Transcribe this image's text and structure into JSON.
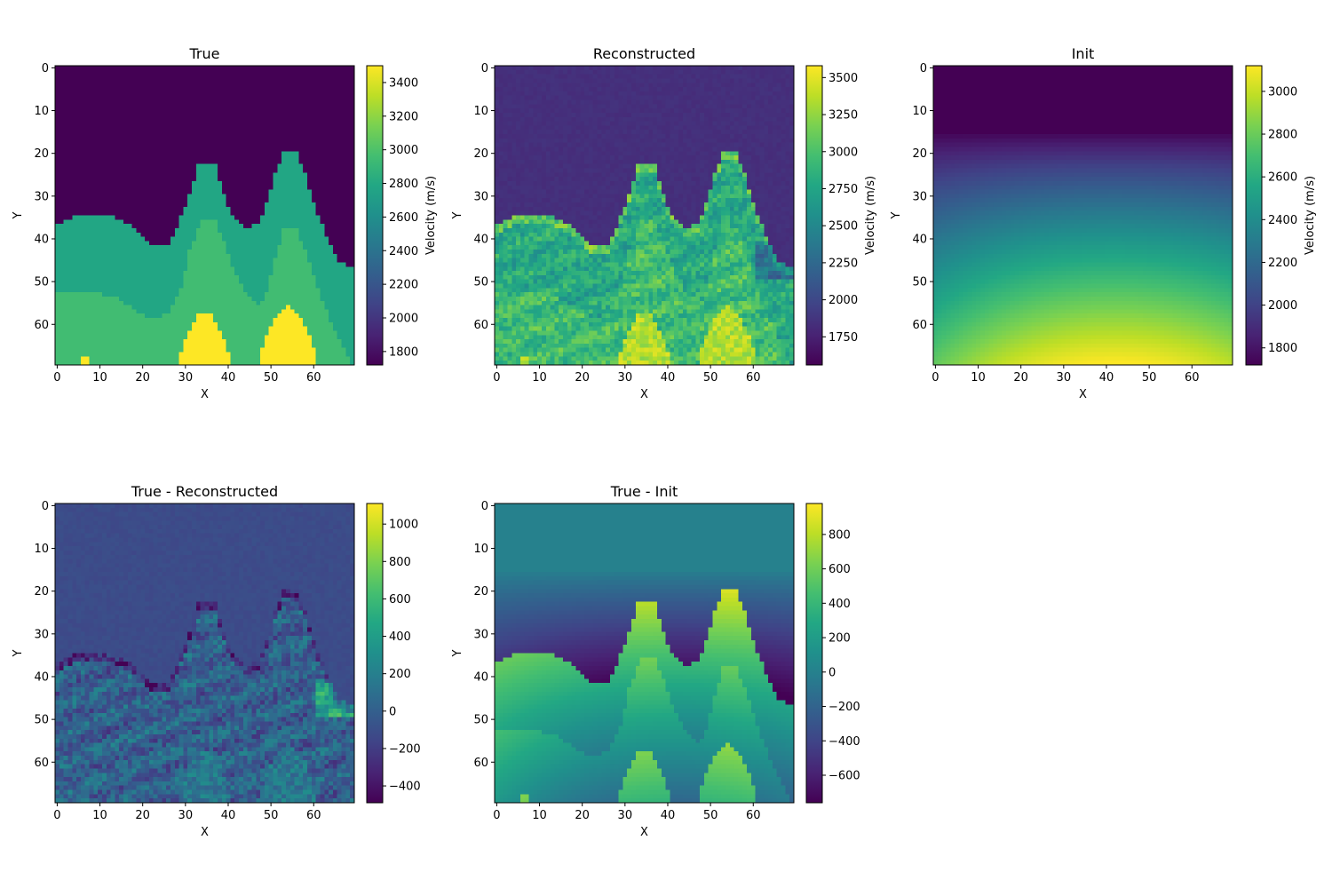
{
  "chart_data": [
    {
      "type": "heatmap",
      "title": "True",
      "xlabel": "X",
      "ylabel": "Y",
      "xlim": [
        0,
        69
      ],
      "ylim": [
        69,
        0
      ],
      "x_ticks": [
        "0",
        "10",
        "20",
        "30",
        "40",
        "50",
        "60"
      ],
      "y_ticks": [
        "0",
        "10",
        "20",
        "30",
        "40",
        "50",
        "60"
      ],
      "colorbar": {
        "label": "Velocity (m/s)",
        "range": [
          1720,
          3500
        ],
        "ticks": [
          "1800",
          "2000",
          "2200",
          "2400",
          "2600",
          "2800",
          "3000",
          "3200",
          "3400"
        ]
      },
      "model": {
        "top_velocity": 1720,
        "upper_layer_velocity": 2780,
        "middle_layer_velocity": 2950,
        "bottom_velocity": 3500,
        "upper_interface_depth": [
          [
            0,
            37
          ],
          [
            2,
            36
          ],
          [
            5,
            35
          ],
          [
            12,
            35
          ],
          [
            17,
            37
          ],
          [
            20,
            40
          ],
          [
            22,
            42
          ],
          [
            26,
            42
          ],
          [
            28,
            38
          ],
          [
            31,
            30
          ],
          [
            33,
            23
          ],
          [
            37,
            23
          ],
          [
            39,
            30
          ],
          [
            41,
            35
          ],
          [
            44,
            38
          ],
          [
            47,
            37
          ],
          [
            49,
            32
          ],
          [
            51,
            25
          ],
          [
            53,
            20
          ],
          [
            56,
            20
          ],
          [
            58,
            25
          ],
          [
            60,
            32
          ],
          [
            62,
            37
          ],
          [
            64,
            42
          ],
          [
            66,
            46
          ],
          [
            69,
            47
          ]
        ],
        "lower_interface_depth": [
          [
            0,
            53
          ],
          [
            8,
            53
          ],
          [
            14,
            54
          ],
          [
            18,
            57
          ],
          [
            22,
            59
          ],
          [
            26,
            58
          ],
          [
            29,
            52
          ],
          [
            31,
            43
          ],
          [
            34,
            36
          ],
          [
            37,
            36
          ],
          [
            39,
            41
          ],
          [
            41,
            47
          ],
          [
            44,
            53
          ],
          [
            47,
            56
          ],
          [
            49,
            53
          ],
          [
            51,
            45
          ],
          [
            53,
            38
          ],
          [
            56,
            38
          ],
          [
            59,
            46
          ],
          [
            62,
            55
          ],
          [
            65,
            62
          ],
          [
            69,
            70
          ]
        ],
        "high_bodies": [
          {
            "x_range": [
              29,
              40
            ],
            "top": 57
          },
          {
            "x_range": [
              48,
              60
            ],
            "top": 56
          }
        ]
      }
    },
    {
      "type": "heatmap",
      "title": "Reconstructed",
      "xlabel": "X",
      "ylabel": "Y",
      "xlim": [
        0,
        69
      ],
      "ylim": [
        69,
        0
      ],
      "x_ticks": [
        "0",
        "10",
        "20",
        "30",
        "40",
        "50",
        "60"
      ],
      "y_ticks": [
        "0",
        "10",
        "20",
        "30",
        "40",
        "50",
        "60"
      ],
      "colorbar": {
        "label": "Velocity (m/s)",
        "range": [
          1560,
          3580
        ],
        "ticks": [
          "1750",
          "2000",
          "2250",
          "2500",
          "2750",
          "3000",
          "3250",
          "3500"
        ]
      },
      "model": {
        "top_velocity": 1840,
        "upper_layer_velocity": 2950,
        "middle_layer_velocity": 3050,
        "bottom_velocity": 3350
      }
    },
    {
      "type": "heatmap",
      "title": "Init",
      "xlabel": "X",
      "ylabel": "Y",
      "xlim": [
        0,
        69
      ],
      "ylim": [
        69,
        0
      ],
      "x_ticks": [
        "0",
        "10",
        "20",
        "30",
        "40",
        "50",
        "60"
      ],
      "y_ticks": [
        "0",
        "10",
        "20",
        "30",
        "40",
        "50",
        "60"
      ],
      "colorbar": {
        "label": "Velocity (m/s)",
        "range": [
          1720,
          3120
        ],
        "ticks": [
          "1800",
          "2000",
          "2200",
          "2400",
          "2600",
          "2800",
          "3000"
        ]
      },
      "model": {
        "min_velocity": 1720,
        "max_velocity": 3120,
        "gradient_start_depth": 15,
        "center_x": 42
      }
    },
    {
      "type": "heatmap",
      "title": "True - Reconstructed",
      "xlabel": "X",
      "ylabel": "Y",
      "xlim": [
        0,
        69
      ],
      "ylim": [
        69,
        0
      ],
      "x_ticks": [
        "0",
        "10",
        "20",
        "30",
        "40",
        "50",
        "60"
      ],
      "y_ticks": [
        "0",
        "10",
        "20",
        "30",
        "40",
        "50",
        "60"
      ],
      "colorbar": {
        "label": "",
        "range": [
          -490,
          1110
        ],
        "ticks": [
          "−400",
          "−200",
          "0",
          "200",
          "400",
          "600",
          "800",
          "1000"
        ]
      }
    },
    {
      "type": "heatmap",
      "title": "True - Init",
      "xlabel": "X",
      "ylabel": "Y",
      "xlim": [
        0,
        69
      ],
      "ylim": [
        69,
        0
      ],
      "x_ticks": [
        "0",
        "10",
        "20",
        "30",
        "40",
        "50",
        "60"
      ],
      "y_ticks": [
        "0",
        "10",
        "20",
        "30",
        "40",
        "50",
        "60"
      ],
      "colorbar": {
        "label": "",
        "range": [
          -760,
          980
        ],
        "ticks": [
          "−600",
          "−400",
          "−200",
          "0",
          "200",
          "400",
          "600",
          "800"
        ]
      }
    }
  ],
  "colormap": "viridis"
}
